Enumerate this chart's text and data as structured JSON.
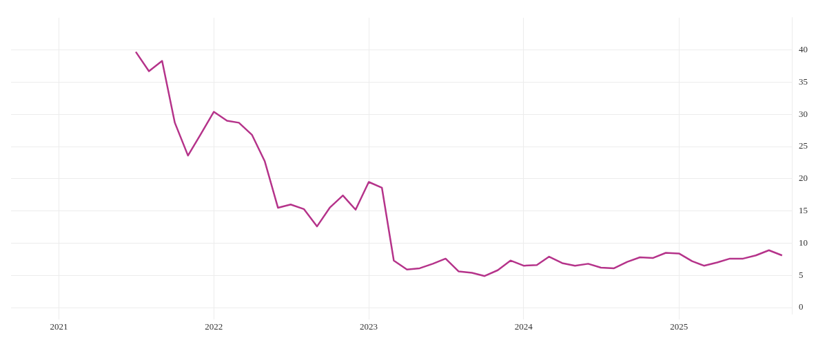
{
  "chart_data": {
    "type": "line",
    "x": [
      "2021-07",
      "2021-08",
      "2021-09",
      "2021-10",
      "2021-11",
      "2021-12",
      "2022-01",
      "2022-02",
      "2022-03",
      "2022-04",
      "2022-05",
      "2022-06",
      "2022-07",
      "2022-08",
      "2022-09",
      "2022-10",
      "2022-11",
      "2022-12",
      "2023-01",
      "2023-02",
      "2023-03",
      "2023-04",
      "2023-05",
      "2023-06",
      "2023-07",
      "2023-08",
      "2023-09",
      "2023-10",
      "2023-11",
      "2023-12",
      "2024-01",
      "2024-02",
      "2024-03",
      "2024-04",
      "2024-05",
      "2024-06",
      "2024-07",
      "2024-08",
      "2024-09",
      "2024-10",
      "2024-11",
      "2024-12",
      "2025-01",
      "2025-02",
      "2025-03",
      "2025-04",
      "2025-05",
      "2025-06",
      "2025-07",
      "2025-08",
      "2025-09"
    ],
    "series": [
      {
        "color": "#b5338a",
        "values": [
          39.7,
          36.7,
          38.3,
          28.7,
          23.6,
          26.9,
          30.4,
          29.0,
          28.7,
          26.8,
          22.7,
          15.5,
          16.0,
          15.3,
          12.6,
          15.5,
          17.4,
          15.2,
          19.5,
          18.6,
          7.3,
          5.9,
          6.1,
          6.8,
          7.6,
          5.6,
          5.4,
          4.9,
          5.8,
          7.3,
          6.5,
          6.6,
          7.9,
          6.9,
          6.5,
          6.8,
          6.2,
          6.1,
          7.1,
          7.8,
          7.7,
          8.5,
          8.4,
          7.2,
          6.5,
          7.0,
          7.6,
          7.6,
          8.1,
          8.9,
          8.1
        ]
      }
    ],
    "xlim": [
      "2020-09-10",
      "2025-09-24"
    ],
    "xticks": [
      "2021",
      "2022",
      "2023",
      "2024",
      "2025"
    ],
    "ylim": [
      -1,
      45
    ],
    "yticks": [
      0,
      5,
      10,
      15,
      20,
      25,
      30,
      35,
      40
    ],
    "grid": true,
    "legend": false,
    "marker": "none",
    "line_style": "solid"
  }
}
